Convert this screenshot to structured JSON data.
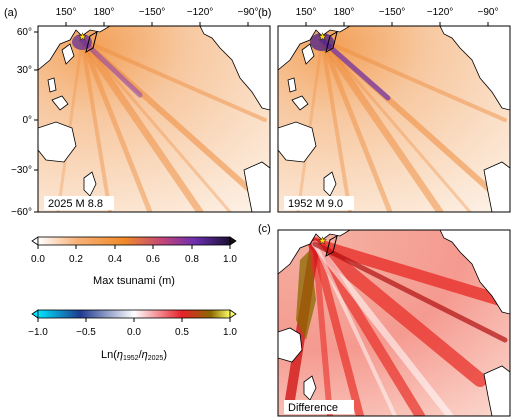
{
  "panels": {
    "a": {
      "letter": "(a)",
      "caption": "2025 M 8.8"
    },
    "b": {
      "letter": "(b)",
      "caption": "1952 M 9.0"
    },
    "c": {
      "letter": "(c)",
      "caption": "Difference"
    }
  },
  "lon_ticks": [
    "150°",
    "180°",
    "−150°",
    "−120°",
    "−90°"
  ],
  "lat_ticks": [
    "60°",
    "30°",
    "0°",
    "−30°",
    "−60°"
  ],
  "colorbar_tsunami": {
    "ticks": [
      "0.0",
      "0.2",
      "0.4",
      "0.6",
      "0.8",
      "1.0"
    ],
    "range": [
      0.0,
      1.0
    ],
    "label": "Max tsunami (m)",
    "colors": [
      "#ffffff",
      "#f7b27a",
      "#f08a2a",
      "#c2457a",
      "#6b2fb0",
      "#1a1033"
    ]
  },
  "colorbar_ratio": {
    "ticks": [
      "−1.0",
      "−0.5",
      "0.0",
      "0.5",
      "1.0"
    ],
    "range": [
      -1.0,
      1.0
    ],
    "label_main": "Ln(",
    "label_eta1": "η",
    "label_sub1": "1952",
    "label_slash": "/",
    "label_eta2": "η",
    "label_sub2": "2025",
    "label_close": ")",
    "colors": [
      "#00ffff",
      "#1f3a8f",
      "#ffffff",
      "#e8202a",
      "#8a6a00",
      "#ffff66"
    ]
  },
  "colors": {
    "ocean": "#fcefe4",
    "tsunami_orange": "#ee8a3a",
    "tsunami_purple": "#5a2a9a",
    "diff_red": "#e8302a",
    "land": "#ffffff",
    "coast": "#000000"
  }
}
